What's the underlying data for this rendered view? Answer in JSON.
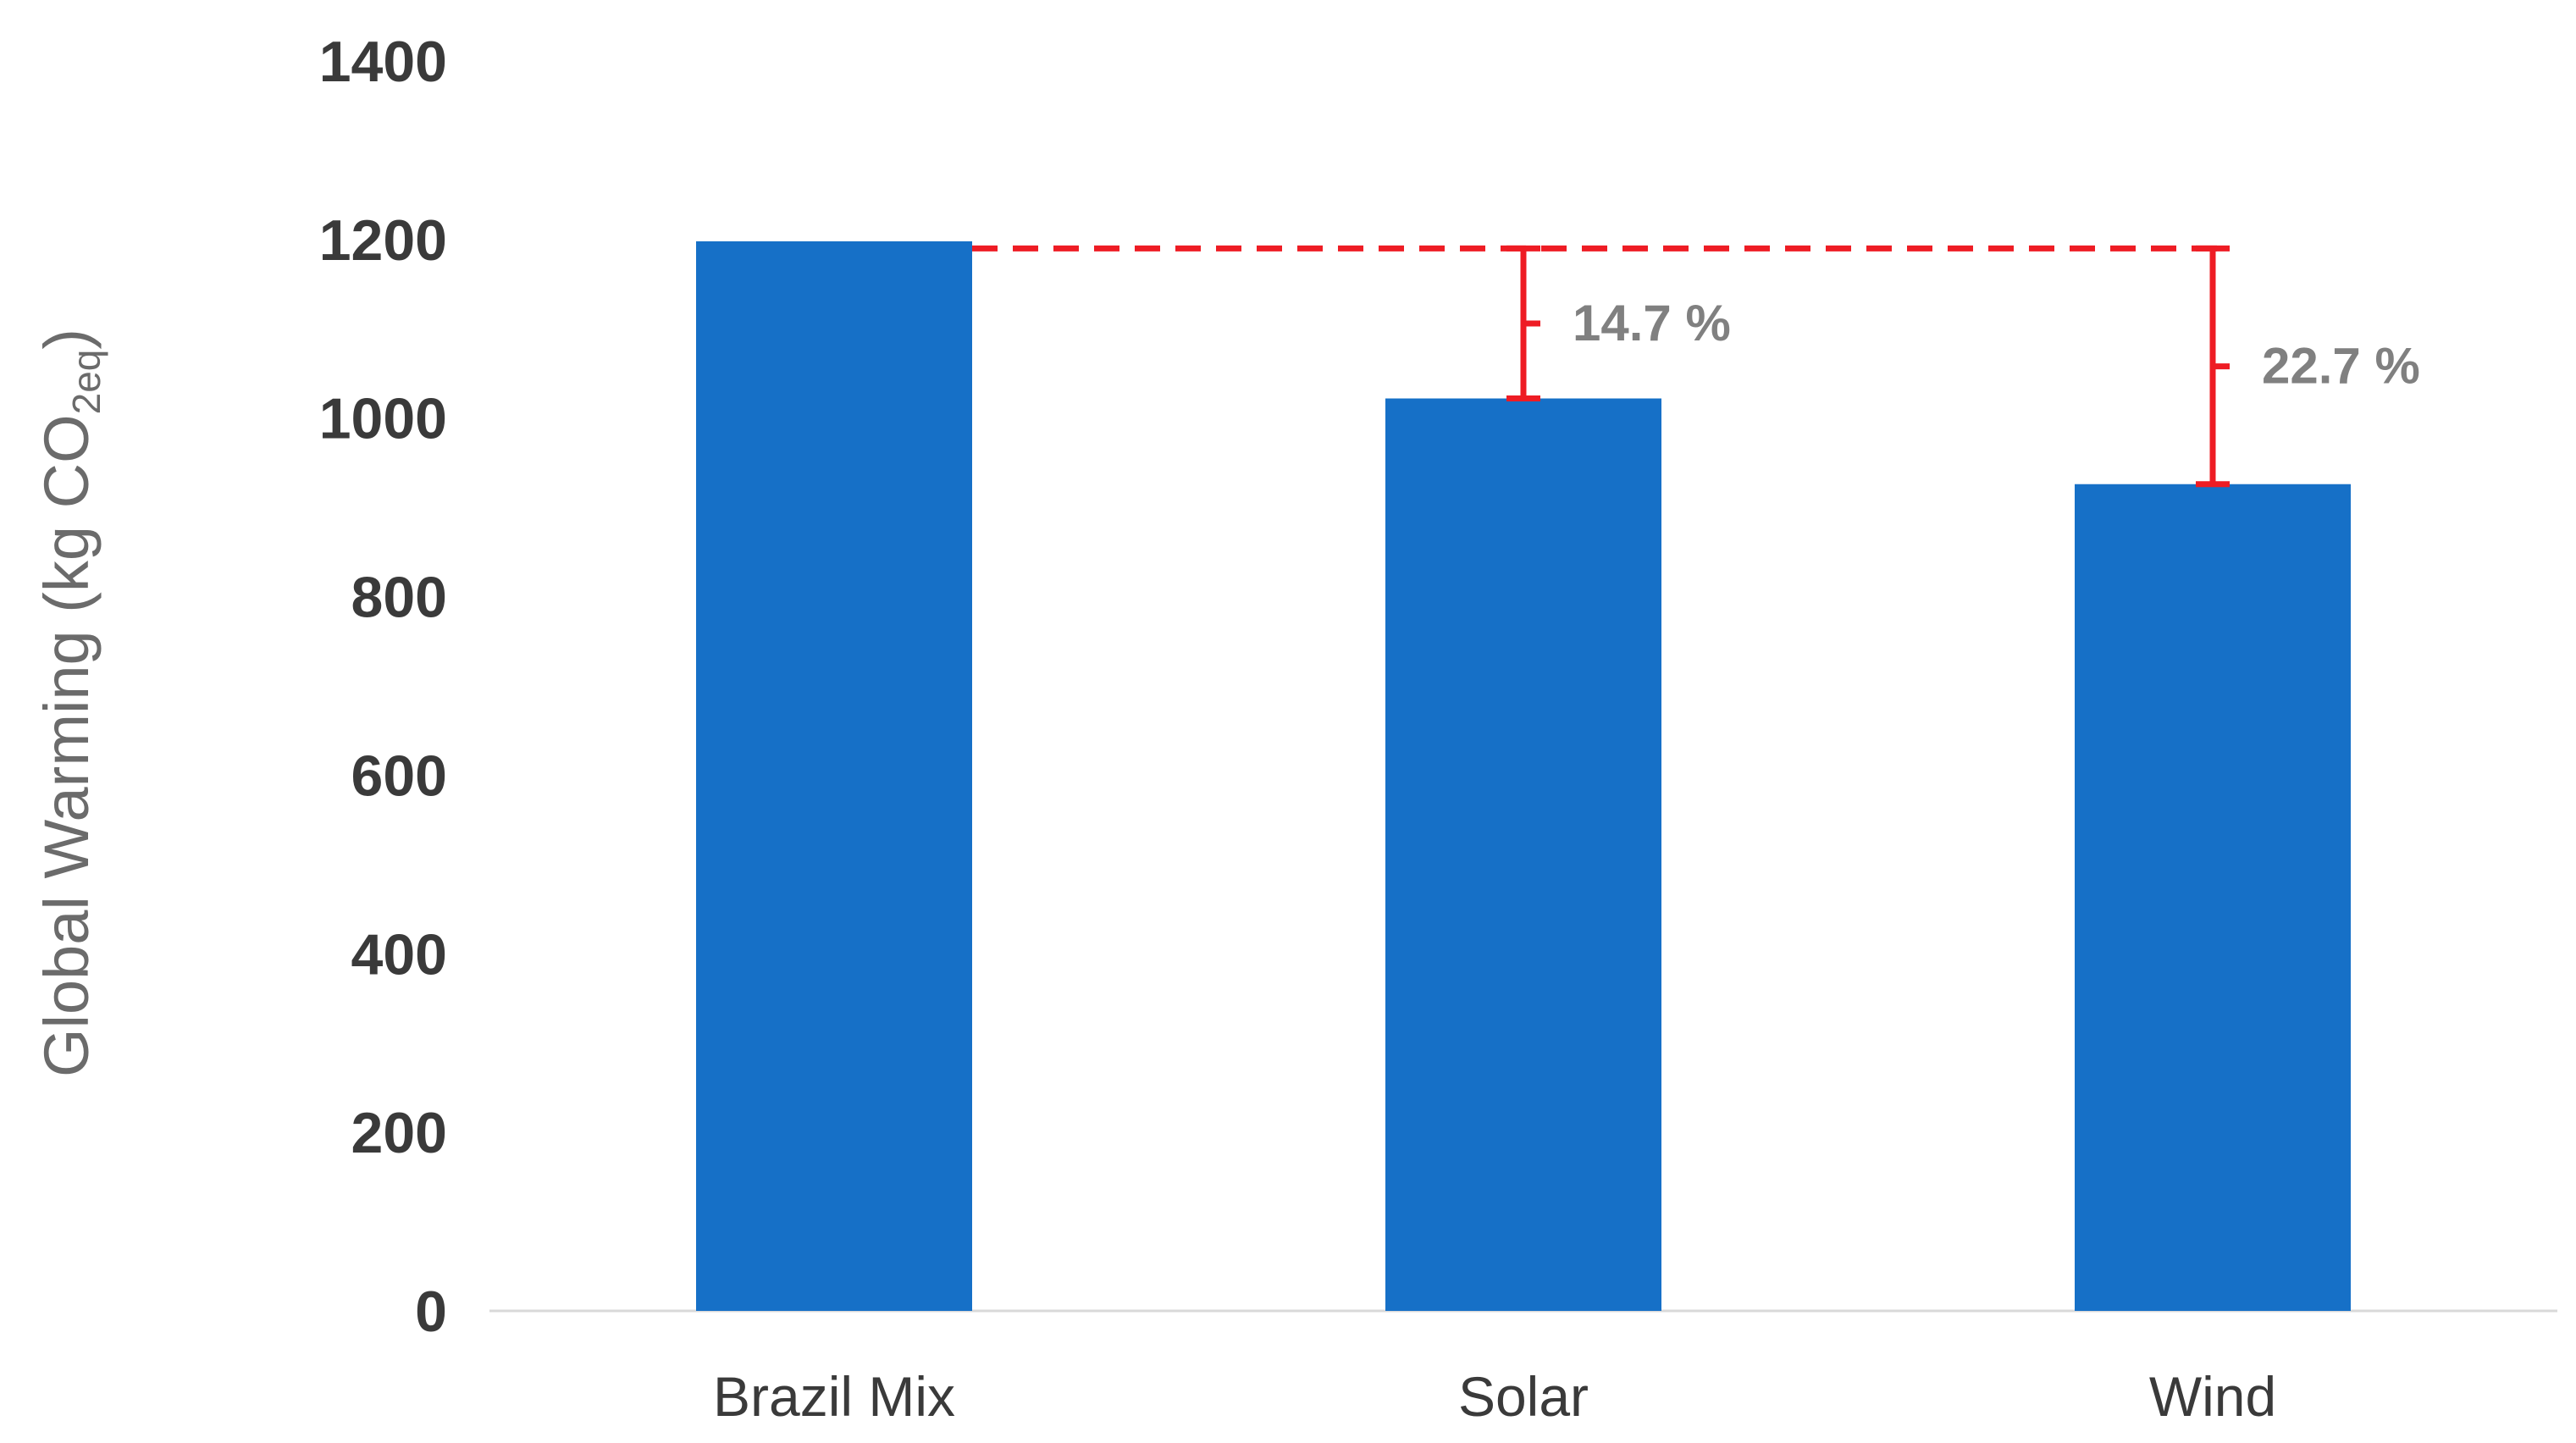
{
  "chart_data": {
    "type": "bar",
    "categories": [
      "Brazil Mix",
      "Solar",
      "Wind"
    ],
    "values": [
      1198,
      1022,
      926
    ],
    "ylabel_main": "Global Warming (kg CO",
    "ylabel_sub": "2eq",
    "ylabel_end": ")",
    "ylim": [
      0,
      1400
    ],
    "yticks": [
      "0",
      "200",
      "400",
      "600",
      "800",
      "1000",
      "1200",
      "1400"
    ],
    "grid": false,
    "colors": {
      "bar": "#1670c7",
      "reference": "#ee1c24",
      "annotation": "#808080",
      "axis": "#d9d9d9"
    },
    "annotations": [
      {
        "label": "14.7 %",
        "category": "Solar",
        "from": 1190,
        "to": 1022
      },
      {
        "label": "22.7 %",
        "category": "Wind",
        "from": 1190,
        "to": 926
      }
    ],
    "reference_line": {
      "value": 1190,
      "style": "dashed"
    }
  }
}
